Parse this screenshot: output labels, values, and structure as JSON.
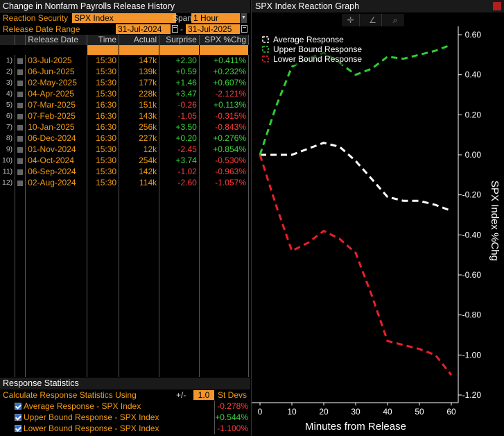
{
  "left_panel": {
    "title": "Change in Nonfarm Payrolls Release History",
    "reaction_security_label": "Reaction Security",
    "reaction_security_value": "SPX Index",
    "span_label": "Span",
    "span_value": "1 Hour",
    "release_date_range_label": "Release Date Range",
    "date_from": "31-Jul-2024",
    "date_sep": "-",
    "date_to": "31-Jul-2025"
  },
  "table": {
    "headers": {
      "date": "Release Date",
      "time": "Time",
      "actual": "Actual",
      "surprise": "Surprise",
      "chg": "SPX %Chg"
    },
    "rows": [
      {
        "idx": "1)",
        "date": "03-Jul-2025",
        "time": "15:30",
        "actual": "147k",
        "surprise": "+2.30",
        "chg": "+0.411%"
      },
      {
        "idx": "2)",
        "date": "06-Jun-2025",
        "time": "15:30",
        "actual": "139k",
        "surprise": "+0.59",
        "chg": "+0.232%"
      },
      {
        "idx": "3)",
        "date": "02-May-2025",
        "time": "15:30",
        "actual": "177k",
        "surprise": "+1.46",
        "chg": "+0.607%"
      },
      {
        "idx": "4)",
        "date": "04-Apr-2025",
        "time": "15:30",
        "actual": "228k",
        "surprise": "+3.47",
        "chg": "-2.121%"
      },
      {
        "idx": "5)",
        "date": "07-Mar-2025",
        "time": "16:30",
        "actual": "151k",
        "surprise": "-0.26",
        "chg": "+0.113%"
      },
      {
        "idx": "6)",
        "date": "07-Feb-2025",
        "time": "16:30",
        "actual": "143k",
        "surprise": "-1.05",
        "chg": "-0.315%"
      },
      {
        "idx": "7)",
        "date": "10-Jan-2025",
        "time": "16:30",
        "actual": "256k",
        "surprise": "+3.50",
        "chg": "-0.843%"
      },
      {
        "idx": "8)",
        "date": "06-Dec-2024",
        "time": "16:30",
        "actual": "227k",
        "surprise": "+0.20",
        "chg": "+0.276%"
      },
      {
        "idx": "9)",
        "date": "01-Nov-2024",
        "time": "15:30",
        "actual": "12k",
        "surprise": "-2.45",
        "chg": "+0.854%"
      },
      {
        "idx": "10)",
        "date": "04-Oct-2024",
        "time": "15:30",
        "actual": "254k",
        "surprise": "+3.74",
        "chg": "-0.530%"
      },
      {
        "idx": "11)",
        "date": "06-Sep-2024",
        "time": "15:30",
        "actual": "142k",
        "surprise": "-1.02",
        "chg": "-0.963%"
      },
      {
        "idx": "12)",
        "date": "02-Aug-2024",
        "time": "15:30",
        "actual": "114k",
        "surprise": "-2.60",
        "chg": "-1.057%"
      }
    ]
  },
  "stats": {
    "title": "Response Statistics",
    "calc_label": "Calculate Response Statistics Using",
    "plusminus": "+/-",
    "stdev_value": "1.0",
    "stdev_label": "St Devs",
    "rows": [
      {
        "label": "Average Response - SPX Index",
        "value": "-0.278%",
        "sign": "neg"
      },
      {
        "label": "Upper Bound Response - SPX Index",
        "value": "+0.544%",
        "sign": "pos"
      },
      {
        "label": "Lower Bound Response - SPX Index",
        "value": "-1.100%",
        "sign": "neg"
      }
    ]
  },
  "graph": {
    "title": "SPX Index Reaction Graph",
    "tools": [
      "crosshair-icon",
      "line-draw-icon",
      "zoom-icon"
    ]
  },
  "chart_data": {
    "type": "line",
    "xlabel": "Minutes from Release",
    "ylabel": "SPX Index %Chg",
    "xlim": [
      0,
      60
    ],
    "ylim": [
      -1.2,
      0.6
    ],
    "x_ticks": [
      0,
      10,
      20,
      30,
      40,
      50,
      60
    ],
    "y_ticks": [
      "0.60",
      "0.40",
      "0.20",
      "0.00",
      "-0.20",
      "-0.40",
      "-0.60",
      "-0.80",
      "-1.00",
      "-1.20"
    ],
    "y_tick_values": [
      0.6,
      0.4,
      0.2,
      0.0,
      -0.2,
      -0.4,
      -0.6,
      -0.8,
      -1.0,
      -1.2
    ],
    "legend_position": "top-left",
    "series": [
      {
        "name": "Average Response",
        "color": "#ffffff",
        "x": [
          0,
          5,
          10,
          15,
          20,
          25,
          30,
          35,
          40,
          45,
          50,
          55,
          60
        ],
        "values": [
          0.0,
          0.0,
          0.0,
          0.03,
          0.06,
          0.04,
          -0.03,
          -0.12,
          -0.21,
          -0.23,
          -0.23,
          -0.25,
          -0.28
        ]
      },
      {
        "name": "Upper Bound Response",
        "color": "#2fcc2f",
        "x": [
          0,
          5,
          10,
          15,
          20,
          25,
          30,
          35,
          40,
          45,
          50,
          55,
          60
        ],
        "values": [
          0.0,
          0.24,
          0.44,
          0.48,
          0.51,
          0.46,
          0.4,
          0.43,
          0.49,
          0.48,
          0.5,
          0.52,
          0.55
        ]
      },
      {
        "name": "Lower Bound Response",
        "color": "#e8202a",
        "x": [
          0,
          5,
          10,
          15,
          20,
          25,
          30,
          35,
          40,
          45,
          50,
          55,
          60
        ],
        "values": [
          0.0,
          -0.25,
          -0.48,
          -0.44,
          -0.38,
          -0.42,
          -0.49,
          -0.7,
          -0.93,
          -0.95,
          -0.97,
          -1.0,
          -1.1
        ]
      }
    ]
  }
}
